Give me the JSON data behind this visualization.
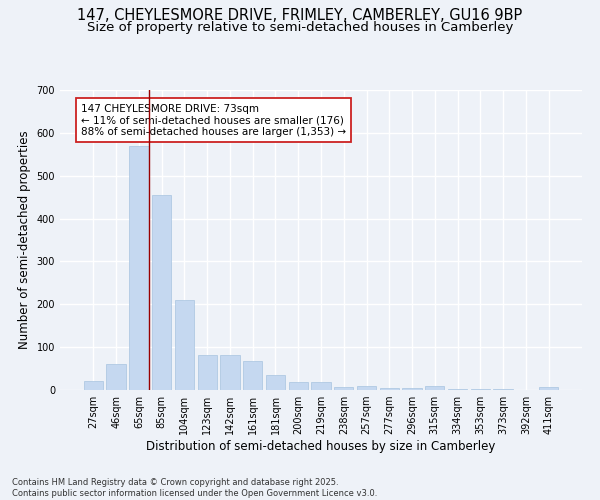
{
  "title_line1": "147, CHEYLESMORE DRIVE, FRIMLEY, CAMBERLEY, GU16 9BP",
  "title_line2": "Size of property relative to semi-detached houses in Camberley",
  "xlabel": "Distribution of semi-detached houses by size in Camberley",
  "ylabel": "Number of semi-detached properties",
  "footnote": "Contains HM Land Registry data © Crown copyright and database right 2025.\nContains public sector information licensed under the Open Government Licence v3.0.",
  "categories": [
    "27sqm",
    "46sqm",
    "65sqm",
    "85sqm",
    "104sqm",
    "123sqm",
    "142sqm",
    "161sqm",
    "181sqm",
    "200sqm",
    "219sqm",
    "238sqm",
    "257sqm",
    "277sqm",
    "296sqm",
    "315sqm",
    "334sqm",
    "353sqm",
    "373sqm",
    "392sqm",
    "411sqm"
  ],
  "values": [
    20,
    60,
    570,
    455,
    210,
    82,
    82,
    68,
    35,
    18,
    18,
    8,
    10,
    5,
    5,
    10,
    2,
    2,
    2,
    0,
    8
  ],
  "bar_color": "#c5d8f0",
  "bar_edge_color": "#a8c4e0",
  "subject_line_color": "#990000",
  "annotation_text": "147 CHEYLESMORE DRIVE: 73sqm\n← 11% of semi-detached houses are smaller (176)\n88% of semi-detached houses are larger (1,353) →",
  "annotation_box_color": "#ffffff",
  "annotation_box_edge": "#cc2222",
  "ylim": [
    0,
    700
  ],
  "yticks": [
    0,
    100,
    200,
    300,
    400,
    500,
    600,
    700
  ],
  "background_color": "#eef2f8",
  "grid_color": "#ffffff",
  "title_fontsize": 10.5,
  "subtitle_fontsize": 9.5,
  "axis_label_fontsize": 8.5,
  "tick_fontsize": 7,
  "annotation_fontsize": 7.5,
  "footnote_fontsize": 6.0
}
